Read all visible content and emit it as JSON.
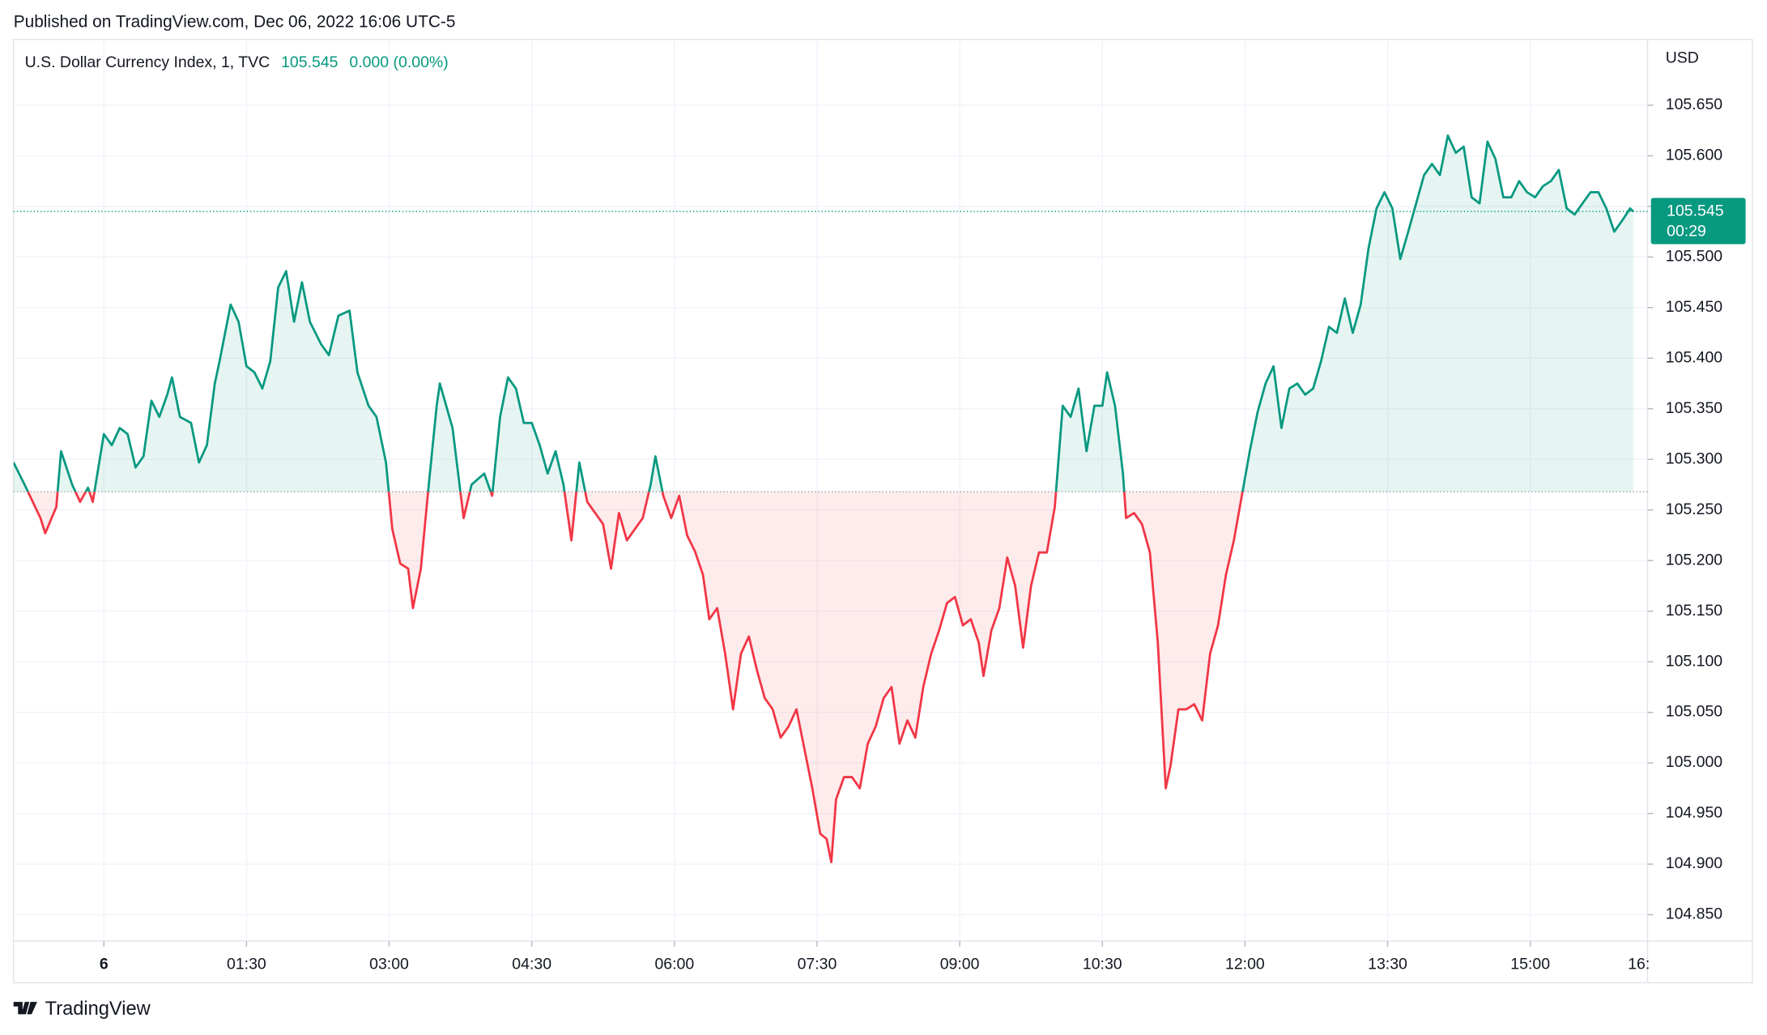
{
  "header": {
    "published": "Published on TradingView.com, Dec 06, 2022 16:06 UTC-5"
  },
  "chart_data": {
    "type": "baseline",
    "title": "U.S. Dollar Currency Index, 1, TVC",
    "last_price": 105.545,
    "change": "0.000 (0.00%)",
    "currency": "USD",
    "countdown": "00:29",
    "baseline": 105.268,
    "colors": {
      "up": "#089981",
      "down": "#f23645"
    },
    "grid": true,
    "xlim": [
      -57,
      974
    ],
    "ylim": [
      104.824,
      105.715
    ],
    "xticks": [
      {
        "value": 0,
        "label": "6"
      },
      {
        "value": 90,
        "label": "01:30"
      },
      {
        "value": 180,
        "label": "03:00"
      },
      {
        "value": 270,
        "label": "04:30"
      },
      {
        "value": 360,
        "label": "06:00"
      },
      {
        "value": 450,
        "label": "07:30"
      },
      {
        "value": 540,
        "label": "09:00"
      },
      {
        "value": 630,
        "label": "10:30"
      },
      {
        "value": 720,
        "label": "12:00"
      },
      {
        "value": 810,
        "label": "13:30"
      },
      {
        "value": 900,
        "label": "15:00"
      },
      {
        "value": 990,
        "label": "16:"
      }
    ],
    "yticks": [
      {
        "value": 104.85,
        "label": "104.850"
      },
      {
        "value": 104.9,
        "label": "104.900"
      },
      {
        "value": 104.95,
        "label": "104.950"
      },
      {
        "value": 105.0,
        "label": "105.000"
      },
      {
        "value": 105.05,
        "label": "105.050"
      },
      {
        "value": 105.1,
        "label": "105.100"
      },
      {
        "value": 105.15,
        "label": "105.150"
      },
      {
        "value": 105.2,
        "label": "105.200"
      },
      {
        "value": 105.25,
        "label": "105.250"
      },
      {
        "value": 105.3,
        "label": "105.300"
      },
      {
        "value": 105.35,
        "label": "105.350"
      },
      {
        "value": 105.4,
        "label": "105.400"
      },
      {
        "value": 105.45,
        "label": "105.450"
      },
      {
        "value": 105.5,
        "label": "105.500"
      },
      {
        "value": 105.55,
        "label": "105.550"
      },
      {
        "value": 105.6,
        "label": "105.600"
      },
      {
        "value": 105.65,
        "label": "105.650"
      }
    ],
    "x": [
      -57,
      -50,
      -40,
      -37,
      -30,
      -27,
      -20,
      -15,
      -10,
      -7,
      0,
      5,
      10,
      15,
      20,
      25,
      30,
      35,
      40,
      43,
      48,
      55,
      60,
      65,
      70,
      73,
      80,
      85,
      90,
      95,
      100,
      105,
      110,
      115,
      120,
      125,
      130,
      137,
      142,
      148,
      155,
      160,
      167,
      172,
      178,
      182,
      187,
      192,
      195,
      200,
      205,
      210,
      212,
      220,
      227,
      232,
      240,
      245,
      250,
      255,
      260,
      265,
      270,
      275,
      280,
      285,
      290,
      295,
      300,
      305,
      310,
      315,
      320,
      325,
      330,
      335,
      340,
      345,
      348,
      353,
      358,
      363,
      368,
      373,
      378,
      382,
      387,
      392,
      397,
      402,
      407,
      412,
      417,
      422,
      427,
      432,
      437,
      442,
      447,
      452,
      456,
      459,
      462,
      467,
      472,
      477,
      482,
      487,
      492,
      497,
      502,
      507,
      512,
      517,
      522,
      527,
      532,
      537,
      542,
      547,
      552,
      555,
      560,
      565,
      570,
      575,
      580,
      585,
      590,
      595,
      600,
      605,
      610,
      615,
      620,
      625,
      630,
      633,
      638,
      643,
      645,
      650,
      655,
      660,
      665,
      670,
      673,
      678,
      683,
      688,
      693,
      698,
      703,
      708,
      713,
      718,
      723,
      728,
      733,
      738,
      743,
      748,
      753,
      758,
      763,
      768,
      773,
      778,
      783,
      788,
      793,
      798,
      803,
      808,
      813,
      818,
      823,
      828,
      833,
      838,
      843,
      848,
      853,
      858,
      863,
      868,
      873,
      878,
      883,
      888,
      893,
      898,
      903,
      908,
      913,
      918,
      923,
      928,
      933,
      938,
      943,
      948,
      953,
      958,
      963,
      965
    ],
    "values": [
      105.297,
      105.275,
      105.242,
      105.227,
      105.253,
      105.308,
      105.275,
      105.258,
      105.272,
      105.258,
      105.325,
      105.314,
      105.331,
      105.325,
      105.292,
      105.303,
      105.358,
      105.342,
      105.364,
      105.381,
      105.342,
      105.336,
      105.297,
      105.314,
      105.375,
      105.397,
      105.453,
      105.436,
      105.392,
      105.386,
      105.37,
      105.397,
      105.47,
      105.486,
      105.436,
      105.475,
      105.436,
      105.414,
      105.403,
      105.442,
      105.447,
      105.386,
      105.353,
      105.342,
      105.297,
      105.231,
      105.197,
      105.192,
      105.153,
      105.192,
      105.275,
      105.353,
      105.375,
      105.331,
      105.242,
      105.275,
      105.286,
      105.264,
      105.342,
      105.381,
      105.37,
      105.336,
      105.336,
      105.314,
      105.286,
      105.308,
      105.275,
      105.22,
      105.297,
      105.258,
      105.247,
      105.236,
      105.192,
      105.247,
      105.22,
      105.231,
      105.242,
      105.275,
      105.303,
      105.264,
      105.242,
      105.264,
      105.225,
      105.209,
      105.186,
      105.142,
      105.153,
      105.108,
      105.053,
      105.108,
      105.125,
      105.092,
      105.064,
      105.053,
      105.025,
      105.036,
      105.053,
      105.014,
      104.975,
      104.93,
      104.925,
      104.902,
      104.964,
      104.986,
      104.986,
      104.975,
      105.019,
      105.036,
      105.064,
      105.075,
      105.019,
      105.042,
      105.025,
      105.075,
      105.108,
      105.131,
      105.158,
      105.164,
      105.136,
      105.142,
      105.119,
      105.086,
      105.131,
      105.153,
      105.203,
      105.175,
      105.114,
      105.175,
      105.208,
      105.208,
      105.253,
      105.353,
      105.342,
      105.37,
      105.308,
      105.353,
      105.353,
      105.386,
      105.353,
      105.286,
      105.242,
      105.247,
      105.236,
      105.208,
      105.119,
      104.975,
      104.997,
      105.053,
      105.053,
      105.058,
      105.042,
      105.108,
      105.136,
      105.186,
      105.22,
      105.264,
      105.308,
      105.347,
      105.375,
      105.392,
      105.331,
      105.37,
      105.375,
      105.364,
      105.37,
      105.397,
      105.431,
      105.425,
      105.459,
      105.425,
      105.453,
      105.509,
      105.548,
      105.564,
      105.548,
      105.498,
      105.525,
      105.553,
      105.581,
      105.592,
      105.581,
      105.62,
      105.603,
      105.609,
      105.559,
      105.553,
      105.614,
      105.597,
      105.559,
      105.559,
      105.575,
      105.564,
      105.559,
      105.57,
      105.575,
      105.586,
      105.548,
      105.542,
      105.553,
      105.564,
      105.564,
      105.548,
      105.525,
      105.536,
      105.548,
      105.545
    ]
  },
  "footer": {
    "logo": "TradingView"
  }
}
